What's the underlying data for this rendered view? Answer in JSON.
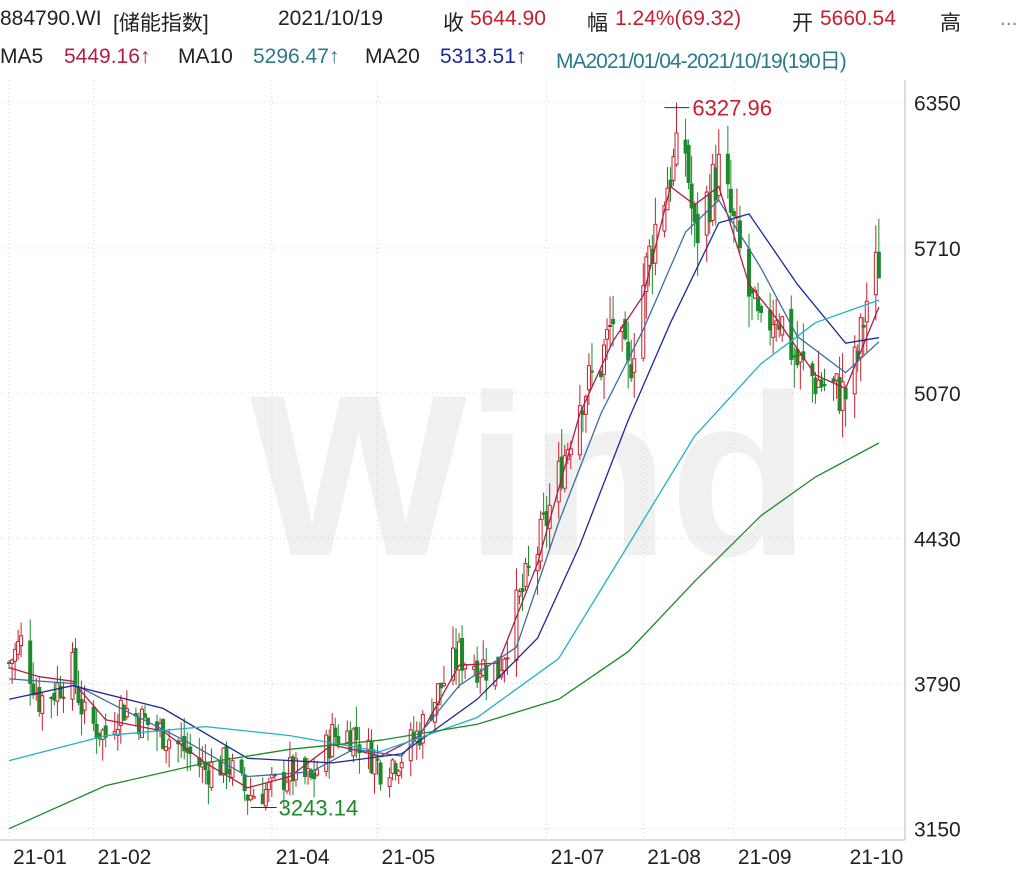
{
  "header": {
    "code": "884790.WI",
    "name": "[储能指数]",
    "date": "2021/10/19",
    "close_label": "收",
    "close_value": "5644.90",
    "change_label": "幅",
    "change_value": "1.24%(69.32)",
    "open_label": "开",
    "open_value": "5660.54",
    "high_label": "高",
    "more": "..."
  },
  "ma_bar": {
    "ma5_label": "MA5",
    "ma5_value": "5449.16↑",
    "ma10_label": "MA10",
    "ma10_value": "5296.47↑",
    "ma20_label": "MA20",
    "ma20_value": "5313.51↑",
    "ma_overlap": "MA2021/01/04-2021/10/19(190日)"
  },
  "colors": {
    "ma5": "#b01e4a",
    "ma10": "#3a6fa0",
    "ma20": "#1c2a99",
    "ma60": "#21b3c4",
    "ma120": "#1d8a2a",
    "up": "#c81e2d",
    "down": "#1d8a2a"
  },
  "chart_data": {
    "type": "candlestick",
    "watermark": "Wind",
    "ylim": [
      3100,
      6450
    ],
    "y_ticks": [
      "6350",
      "5710",
      "5070",
      "4430",
      "3790",
      "3150"
    ],
    "x_ticks": [
      "21-01",
      "21-02",
      "21-04",
      "21-05",
      "21-07",
      "21-08",
      "21-09",
      "21-10"
    ],
    "annotations": [
      {
        "label": "6327.96",
        "kind": "high",
        "date": "21-08"
      },
      {
        "label": "3243.14",
        "kind": "low",
        "date": "21-04"
      }
    ],
    "price_path": [
      [
        "2021-01-04",
        3880
      ],
      [
        "2021-01-08",
        3970
      ],
      [
        "2021-01-14",
        3720
      ],
      [
        "2021-01-19",
        3760
      ],
      [
        "2021-01-25",
        3850
      ],
      [
        "2021-01-29",
        3640
      ],
      [
        "2021-02-05",
        3560
      ],
      [
        "2021-02-10",
        3690
      ],
      [
        "2021-02-24",
        3570
      ],
      [
        "2021-03-03",
        3500
      ],
      [
        "2021-03-10",
        3410
      ],
      [
        "2021-03-17",
        3440
      ],
      [
        "2021-03-24",
        3300
      ],
      [
        "2021-03-31",
        3320
      ],
      [
        "2021-04-07",
        3400
      ],
      [
        "2021-04-14",
        3360
      ],
      [
        "2021-04-21",
        3560
      ],
      [
        "2021-04-28",
        3570
      ],
      [
        "2021-05-07",
        3420
      ],
      [
        "2021-05-14",
        3470
      ],
      [
        "2021-05-20",
        3580
      ],
      [
        "2021-05-27",
        3780
      ],
      [
        "2021-06-02",
        3910
      ],
      [
        "2021-06-08",
        3880
      ],
      [
        "2021-06-15",
        3850
      ],
      [
        "2021-06-21",
        4120
      ],
      [
        "2021-06-28",
        4380
      ],
      [
        "2021-07-05",
        4700
      ],
      [
        "2021-07-12",
        5050
      ],
      [
        "2021-07-19",
        5200
      ],
      [
        "2021-07-23",
        5400
      ],
      [
        "2021-07-28",
        5150
      ],
      [
        "2021-08-02",
        5550
      ],
      [
        "2021-08-06",
        5800
      ],
      [
        "2021-08-11",
        6050
      ],
      [
        "2021-08-16",
        6150
      ],
      [
        "2021-08-19",
        5750
      ],
      [
        "2021-08-24",
        5950
      ],
      [
        "2021-08-27",
        6050
      ],
      [
        "2021-09-01",
        5800
      ],
      [
        "2021-09-06",
        5500
      ],
      [
        "2021-09-10",
        5320
      ],
      [
        "2021-09-15",
        5450
      ],
      [
        "2021-09-22",
        5200
      ],
      [
        "2021-09-28",
        5130
      ],
      [
        "2021-10-08",
        5060
      ],
      [
        "2021-10-12",
        5230
      ],
      [
        "2021-10-15",
        5480
      ],
      [
        "2021-10-19",
        5645
      ]
    ],
    "series": [
      {
        "name": "MA5",
        "points": [
          [
            "2021-01-04",
            3860
          ],
          [
            "2021-01-14",
            3820
          ],
          [
            "2021-01-25",
            3800
          ],
          [
            "2021-02-05",
            3630
          ],
          [
            "2021-02-24",
            3580
          ],
          [
            "2021-03-10",
            3440
          ],
          [
            "2021-03-24",
            3330
          ],
          [
            "2021-04-07",
            3380
          ],
          [
            "2021-04-21",
            3520
          ],
          [
            "2021-05-07",
            3470
          ],
          [
            "2021-05-20",
            3560
          ],
          [
            "2021-06-02",
            3870
          ],
          [
            "2021-06-15",
            3880
          ],
          [
            "2021-06-28",
            4320
          ],
          [
            "2021-07-12",
            4980
          ],
          [
            "2021-07-23",
            5300
          ],
          [
            "2021-08-02",
            5500
          ],
          [
            "2021-08-11",
            5980
          ],
          [
            "2021-08-19",
            5900
          ],
          [
            "2021-08-27",
            5980
          ],
          [
            "2021-09-06",
            5550
          ],
          [
            "2021-09-15",
            5400
          ],
          [
            "2021-09-28",
            5150
          ],
          [
            "2021-10-08",
            5090
          ],
          [
            "2021-10-19",
            5449
          ]
        ]
      },
      {
        "name": "MA10",
        "points": [
          [
            "2021-01-04",
            3810
          ],
          [
            "2021-01-25",
            3790
          ],
          [
            "2021-02-10",
            3680
          ],
          [
            "2021-03-03",
            3540
          ],
          [
            "2021-03-24",
            3380
          ],
          [
            "2021-04-14",
            3400
          ],
          [
            "2021-04-28",
            3500
          ],
          [
            "2021-05-14",
            3470
          ],
          [
            "2021-06-02",
            3780
          ],
          [
            "2021-06-21",
            3950
          ],
          [
            "2021-07-05",
            4500
          ],
          [
            "2021-07-19",
            4980
          ],
          [
            "2021-08-02",
            5350
          ],
          [
            "2021-08-16",
            5780
          ],
          [
            "2021-08-27",
            5920
          ],
          [
            "2021-09-10",
            5620
          ],
          [
            "2021-09-22",
            5320
          ],
          [
            "2021-10-08",
            5160
          ],
          [
            "2021-10-19",
            5296
          ]
        ]
      },
      {
        "name": "MA20",
        "points": [
          [
            "2021-01-04",
            3720
          ],
          [
            "2021-01-25",
            3780
          ],
          [
            "2021-02-24",
            3680
          ],
          [
            "2021-03-24",
            3460
          ],
          [
            "2021-04-21",
            3440
          ],
          [
            "2021-05-14",
            3480
          ],
          [
            "2021-06-08",
            3720
          ],
          [
            "2021-06-28",
            3990
          ],
          [
            "2021-07-12",
            4400
          ],
          [
            "2021-07-28",
            4950
          ],
          [
            "2021-08-11",
            5380
          ],
          [
            "2021-08-27",
            5820
          ],
          [
            "2021-09-06",
            5860
          ],
          [
            "2021-09-22",
            5550
          ],
          [
            "2021-10-08",
            5290
          ],
          [
            "2021-10-19",
            5314
          ]
        ]
      },
      {
        "name": "MA60",
        "points": [
          [
            "2021-01-04",
            3450
          ],
          [
            "2021-02-05",
            3560
          ],
          [
            "2021-03-10",
            3600
          ],
          [
            "2021-04-07",
            3560
          ],
          [
            "2021-05-07",
            3490
          ],
          [
            "2021-06-08",
            3640
          ],
          [
            "2021-07-05",
            3900
          ],
          [
            "2021-07-28",
            4400
          ],
          [
            "2021-08-19",
            4880
          ],
          [
            "2021-09-10",
            5200
          ],
          [
            "2021-09-28",
            5380
          ],
          [
            "2021-10-19",
            5480
          ]
        ]
      },
      {
        "name": "MA120",
        "points": [
          [
            "2021-01-04",
            3150
          ],
          [
            "2021-02-05",
            3340
          ],
          [
            "2021-03-10",
            3440
          ],
          [
            "2021-04-07",
            3500
          ],
          [
            "2021-05-07",
            3540
          ],
          [
            "2021-06-08",
            3610
          ],
          [
            "2021-07-05",
            3720
          ],
          [
            "2021-07-28",
            3930
          ],
          [
            "2021-08-19",
            4240
          ],
          [
            "2021-09-10",
            4530
          ],
          [
            "2021-09-28",
            4700
          ],
          [
            "2021-10-19",
            4850
          ]
        ]
      }
    ]
  }
}
